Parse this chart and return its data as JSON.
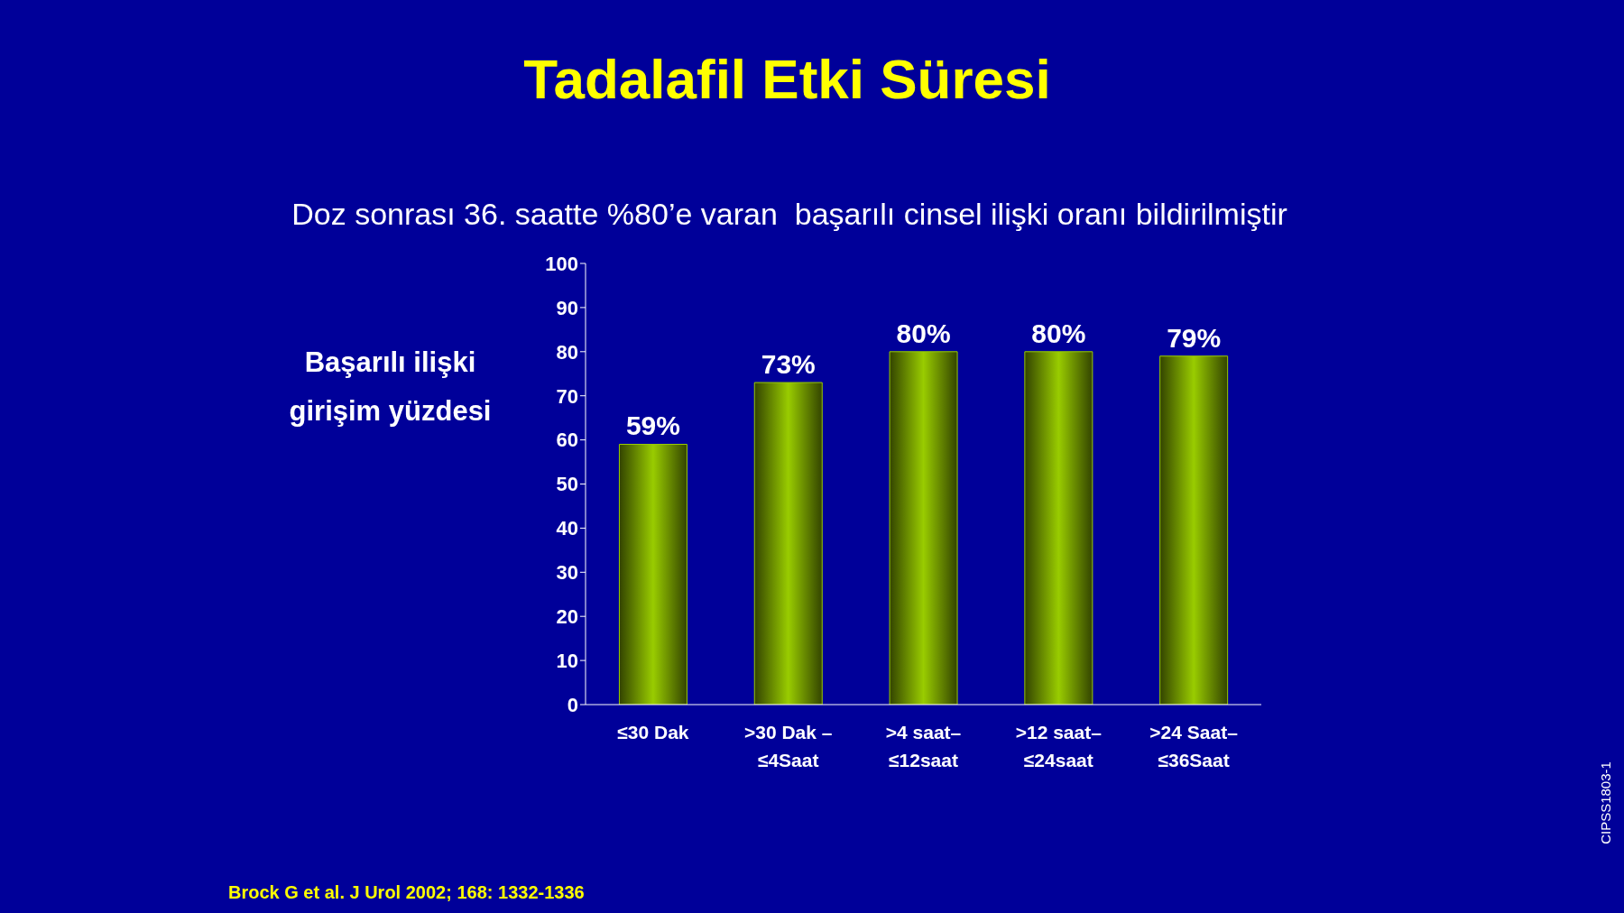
{
  "chart_data": {
    "type": "bar",
    "title": "Tadalafil Etki Süresi",
    "subtitle": "Doz sonrası 36. saatte %80’e varan  başarılı cinsel ilişki oranı bildirilmiştir",
    "ylabel": "Başarılı ilişki girişim yüzdesi",
    "categories": [
      "≤30 Dak",
      ">30 Dak –\n≤4Saat",
      ">4 saat–\n≤12saat",
      ">12 saat–\n≤24saat",
      ">24 Saat–\n≤36Saat"
    ],
    "values": [
      59,
      73,
      80,
      80,
      79
    ],
    "value_labels": [
      "59%",
      "73%",
      "80%",
      "80%",
      "79%"
    ],
    "color": "#99cc00",
    "ylim": [
      0,
      100
    ],
    "yticks": [
      0,
      10,
      20,
      30,
      40,
      50,
      60,
      70,
      80,
      90,
      100
    ],
    "annotations": [
      "Brock G et al. J Urol 2002; 168: 1332-1336",
      "CIPSS1803-1"
    ]
  }
}
